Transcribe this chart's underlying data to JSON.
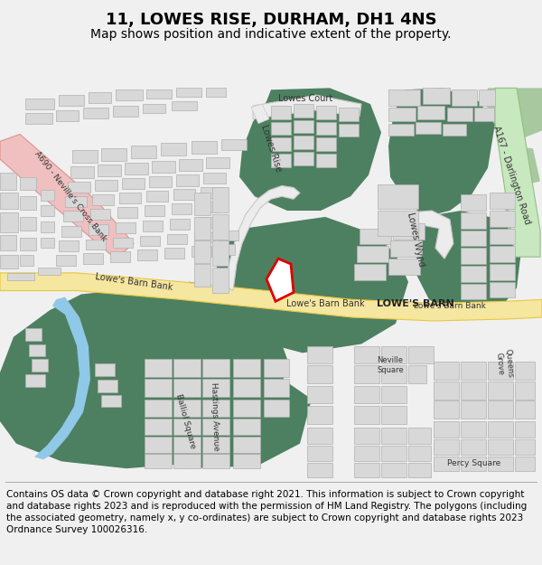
{
  "title": "11, LOWES RISE, DURHAM, DH1 4NS",
  "subtitle": "Map shows position and indicative extent of the property.",
  "footer": "Contains OS data © Crown copyright and database right 2021. This information is subject to Crown copyright and database rights 2023 and is reproduced with the permission of HM Land Registry. The polygons (including the associated geometry, namely x, y co-ordinates) are subject to Crown copyright and database rights 2023 Ordnance Survey 100026316.",
  "bg": "#f0f0f0",
  "map_bg": "#ffffff",
  "green": "#4d8060",
  "green_light": "#a8c8a0",
  "road_yellow": "#f5e6a0",
  "road_yellow_border": "#e8c840",
  "road_pink": "#f0c0c0",
  "road_pink_border": "#e09090",
  "road_green": "#c8e8c0",
  "road_green_border": "#90c080",
  "water": "#90c8e8",
  "bld": "#d8d8d8",
  "bld_e": "#b0b0b0",
  "plot_fc": "#ffffff",
  "plot_ec": "#dd0000",
  "title_fs": 13,
  "sub_fs": 10,
  "foot_fs": 7.5
}
